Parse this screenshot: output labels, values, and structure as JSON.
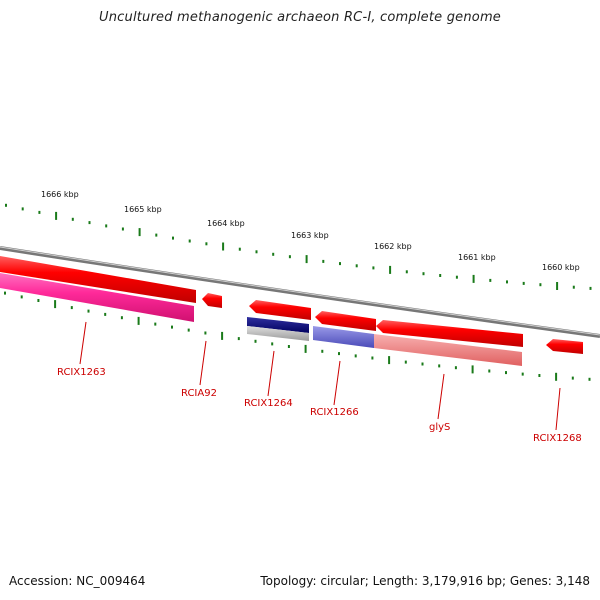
{
  "title": "Uncultured methanogenic archaeon RC-I, complete genome",
  "footer": {
    "accession": "Accession: NC_009464",
    "summary": "Topology: circular; Length: 3,179,916 bp; Genes: 3,148"
  },
  "scale_labels": [
    "1666 kbp",
    "1665 kbp",
    "1664 kbp",
    "1663 kbp",
    "1662 kbp",
    "1661 kbp",
    "1660 kbp"
  ],
  "gene_labels": [
    "RCIX1263",
    "RCIA92",
    "RCIX1264",
    "RCIX1266",
    "glyS",
    "RCIX1268"
  ],
  "colors": {
    "backbone": "#888888",
    "forward_gene": "#ff0000",
    "tick": "#1a7a1a",
    "label": "#cc0000",
    "magenta": "#ff2a9a",
    "navy": "#000080",
    "grey": "#bbbbbb",
    "slate": "#6a6ad0",
    "pink": "#f08080"
  }
}
